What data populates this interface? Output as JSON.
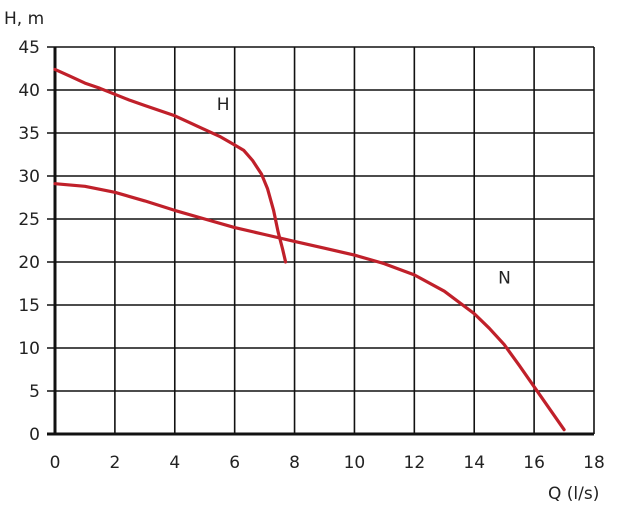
{
  "chart_data": {
    "type": "line",
    "title": "",
    "xlabel": "Q (l/s)",
    "ylabel": "H, m",
    "xlim": [
      0,
      18
    ],
    "ylim": [
      0,
      45
    ],
    "xticks": [
      0,
      2,
      4,
      6,
      8,
      10,
      12,
      14,
      16,
      18
    ],
    "yticks": [
      0,
      5,
      10,
      15,
      20,
      25,
      30,
      35,
      40,
      45
    ],
    "grid": true,
    "line_color": "#c0202a",
    "series": [
      {
        "name": "H",
        "label_at": [
          5.4,
          37.7
        ],
        "points": [
          [
            0,
            42.4
          ],
          [
            0.5,
            41.6
          ],
          [
            1,
            40.8
          ],
          [
            1.5,
            40.2
          ],
          [
            2,
            39.5
          ],
          [
            2.5,
            38.8
          ],
          [
            3,
            38.2
          ],
          [
            3.5,
            37.6
          ],
          [
            4,
            37.0
          ],
          [
            4.5,
            36.2
          ],
          [
            5,
            35.4
          ],
          [
            5.5,
            34.6
          ],
          [
            6,
            33.6
          ],
          [
            6.3,
            33.0
          ],
          [
            6.6,
            31.8
          ],
          [
            6.9,
            30.2
          ],
          [
            7.1,
            28.5
          ],
          [
            7.3,
            26.0
          ],
          [
            7.45,
            23.5
          ],
          [
            7.6,
            21.5
          ],
          [
            7.7,
            20.0
          ]
        ]
      },
      {
        "name": "N",
        "label_at": [
          14.8,
          17.5
        ],
        "points": [
          [
            0,
            29.1
          ],
          [
            1,
            28.8
          ],
          [
            2,
            28.1
          ],
          [
            3,
            27.1
          ],
          [
            4,
            26.0
          ],
          [
            5,
            25.0
          ],
          [
            6,
            24.0
          ],
          [
            7,
            23.2
          ],
          [
            8,
            22.4
          ],
          [
            9,
            21.6
          ],
          [
            10,
            20.8
          ],
          [
            11,
            19.8
          ],
          [
            12,
            18.5
          ],
          [
            13,
            16.6
          ],
          [
            14,
            14.0
          ],
          [
            14.5,
            12.3
          ],
          [
            15,
            10.4
          ],
          [
            15.5,
            8.0
          ],
          [
            16,
            5.5
          ],
          [
            16.5,
            3.0
          ],
          [
            17,
            0.5
          ]
        ]
      }
    ]
  }
}
